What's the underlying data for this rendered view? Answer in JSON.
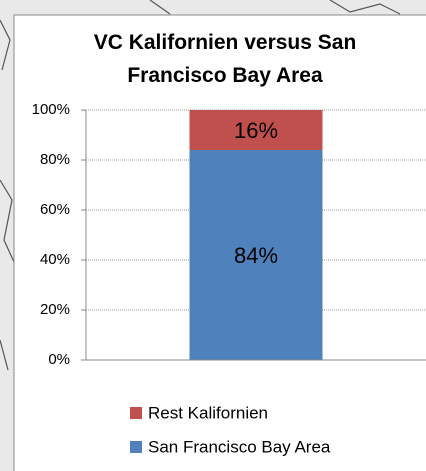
{
  "chart_data": {
    "type": "stacked_bar",
    "title": "VC Kalifornien versus San Francisco Bay Area",
    "categories": [
      null
    ],
    "series": [
      {
        "name": "San Francisco Bay Area",
        "color": "#4f81bd",
        "values": [
          84
        ],
        "value_labels": [
          "84%"
        ]
      },
      {
        "name": "Rest Kalifornien",
        "color": "#c0504d",
        "values": [
          16
        ],
        "value_labels": [
          "16%"
        ]
      }
    ],
    "ylim": [
      0,
      100
    ],
    "yticks": [
      {
        "value": 0,
        "label": "0%"
      },
      {
        "value": 20,
        "label": "20%"
      },
      {
        "value": 40,
        "label": "40%"
      },
      {
        "value": 60,
        "label": "60%"
      },
      {
        "value": 80,
        "label": "80%"
      },
      {
        "value": 100,
        "label": "100%"
      }
    ],
    "grid": true,
    "legend": "bottom"
  }
}
